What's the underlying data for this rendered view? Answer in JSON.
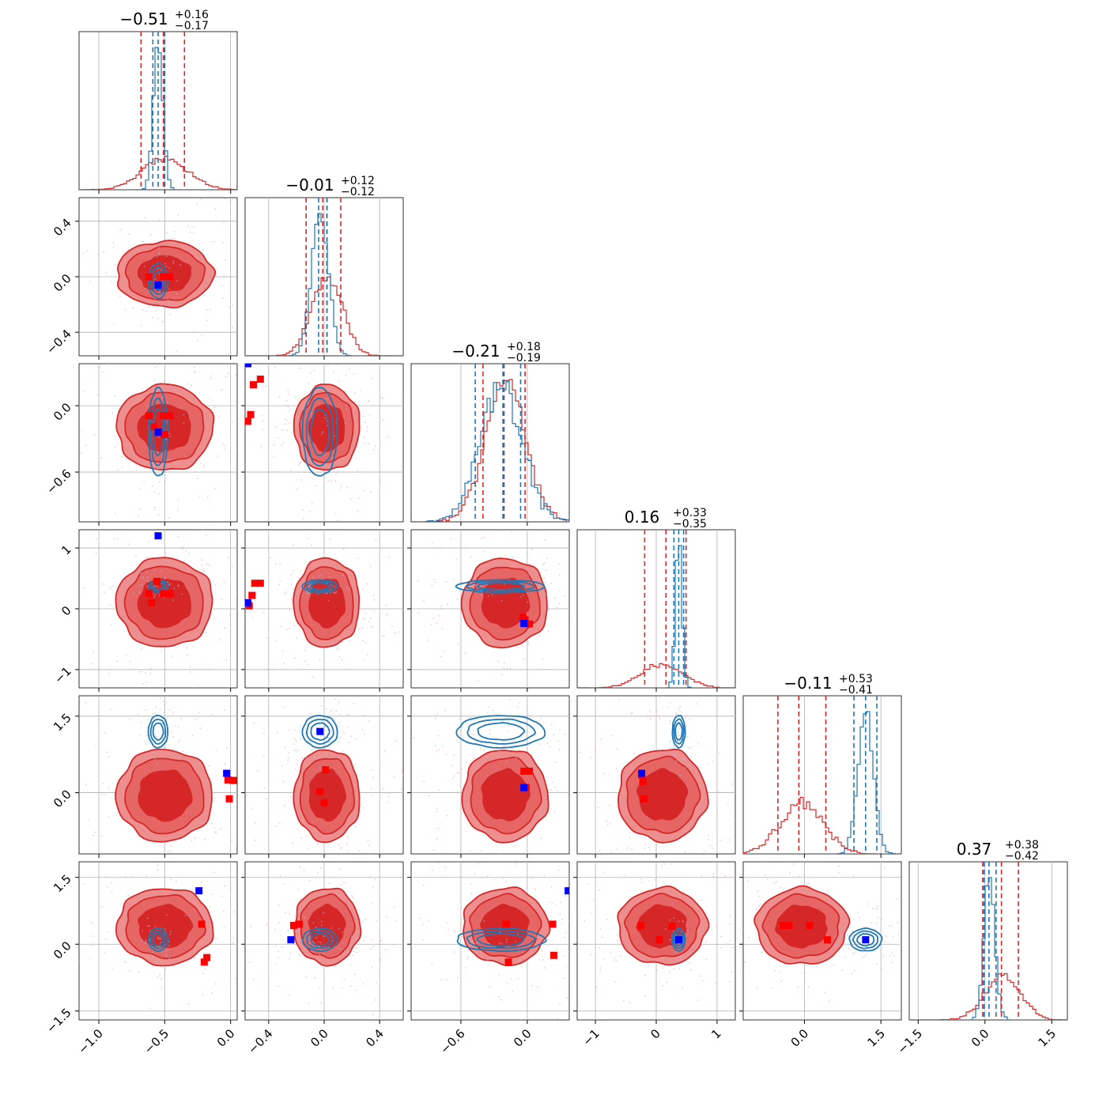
{
  "chart_data": {
    "type": "corner",
    "colors": {
      "series_a": "#d62728",
      "series_b": "#1f77b4",
      "fill_inner": "#d62728",
      "fill_outer": "#ee8f8f",
      "fill_mid": "#e66666",
      "marker_a": "#ff0000",
      "marker_b": "#0000ff",
      "grid": "#b0b0b0"
    },
    "grid": true,
    "parameters": [
      {
        "range": [
          -1.15,
          0.05
        ],
        "ticks": [
          -1.0,
          -0.5,
          0.0
        ],
        "tick_labels": [
          "−1.0",
          "−0.5",
          "0.0"
        ],
        "title": {
          "median": "−0.51",
          "plus": "+0.16",
          "minus": "−0.17"
        },
        "a_quantiles": [
          -0.68,
          -0.51,
          -0.35
        ],
        "b_quantiles": [
          -0.59,
          -0.55,
          -0.5
        ],
        "a_mean": -0.5,
        "a_sd": 0.17,
        "b_mean": -0.55,
        "b_sd": 0.035
      },
      {
        "range": [
          -0.57,
          0.57
        ],
        "ticks": [
          -0.4,
          0.0,
          0.4
        ],
        "tick_labels": [
          "−0.4",
          "0.0",
          "0.4"
        ],
        "title": {
          "median": "−0.01",
          "plus": "+0.12",
          "minus": "−0.12"
        },
        "a_quantiles": [
          -0.13,
          -0.01,
          0.12
        ],
        "b_quantiles": [
          -0.04,
          0.02,
          0.02
        ],
        "a_mean": 0.02,
        "a_sd": 0.11,
        "b_mean": -0.03,
        "b_sd": 0.06
      },
      {
        "range": [
          -1.05,
          0.38
        ],
        "ticks": [
          -0.6,
          0.0
        ],
        "tick_labels": [
          "−0.6",
          "0.0"
        ],
        "title": {
          "median": "−0.21",
          "plus": "+0.18",
          "minus": "−0.19"
        },
        "a_quantiles": [
          -0.4,
          -0.21,
          -0.02
        ],
        "b_quantiles": [
          -0.47,
          -0.22,
          -0.06
        ],
        "a_mean": -0.2,
        "a_sd": 0.18,
        "b_mean": -0.24,
        "b_sd": 0.19
      },
      {
        "range": [
          -1.3,
          1.3
        ],
        "ticks": [
          -1,
          0,
          1
        ],
        "tick_labels": [
          "−1",
          "0",
          "1"
        ],
        "title": {
          "median": "0.16",
          "plus": "+0.33",
          "minus": "−0.35"
        },
        "a_quantiles": [
          -0.19,
          0.16,
          0.49
        ],
        "b_quantiles": [
          0.29,
          0.37,
          0.45
        ],
        "a_mean": 0.1,
        "a_sd": 0.34,
        "b_mean": 0.37,
        "b_sd": 0.05
      },
      {
        "range": [
          -1.2,
          1.9
        ],
        "ticks": [
          0.0,
          1.5
        ],
        "tick_labels": [
          "0.0",
          "1.5"
        ],
        "title": {
          "median": "−0.11",
          "plus": "+0.53",
          "minus": "−0.41"
        },
        "a_quantiles": [
          -0.52,
          -0.11,
          0.42
        ],
        "b_quantiles": [
          0.97,
          1.2,
          1.42
        ],
        "a_mean": -0.05,
        "a_sd": 0.42,
        "b_mean": 1.2,
        "b_sd": 0.15
      },
      {
        "range": [
          -1.7,
          1.85
        ],
        "ticks": [
          -1.5,
          0.0,
          1.5
        ],
        "tick_labels": [
          "−1.5",
          "0.0",
          "1.5"
        ],
        "title": {
          "median": "0.37",
          "plus": "+0.38",
          "minus": "−0.42"
        },
        "a_quantiles": [
          -0.05,
          0.37,
          0.75
        ],
        "b_quantiles": [
          -0.02,
          0.09,
          0.25
        ],
        "a_mean": 0.4,
        "a_sd": 0.4,
        "b_mean": 0.1,
        "b_sd": 0.12
      }
    ],
    "y_axis_ticks": {
      "1": {
        "ticks": [
          -0.4,
          0.0,
          0.4
        ],
        "tick_labels": [
          "−0.4",
          "0.0",
          "0.4"
        ]
      },
      "2": {
        "ticks": [
          -0.6,
          0.0
        ],
        "tick_labels": [
          "−0.6",
          "0.0"
        ]
      },
      "3": {
        "ticks": [
          -1,
          0,
          1
        ],
        "tick_labels": [
          "−1",
          "0",
          "1"
        ]
      },
      "4": {
        "ticks": [
          0.0,
          1.5
        ],
        "tick_labels": [
          "0.0",
          "1.5"
        ]
      },
      "5": {
        "ticks": [
          -1.5,
          0.0,
          1.5
        ],
        "tick_labels": [
          "−1.5",
          "0.0",
          "1.5"
        ]
      }
    },
    "series_a_peaks": [
      [
        [
          -0.62,
          0.0
        ],
        [
          -0.51,
          0.0
        ],
        [
          -0.46,
          0.0
        ]
      ],
      [
        [
          -0.62,
          -0.09
        ],
        [
          -0.51,
          -0.09
        ],
        [
          -0.46,
          -0.09
        ],
        [
          -0.5,
          -0.26
        ],
        [
          -0.58,
          -0.19
        ]
      ],
      [
        [
          -0.62,
          0.04
        ],
        [
          -0.51,
          0.19
        ],
        [
          -0.46,
          0.24
        ],
        [
          -0.55,
          -0.14
        ],
        [
          -0.53,
          -0.08
        ]
      ],
      [
        [
          -0.62,
          0.25
        ],
        [
          -0.51,
          0.25
        ],
        [
          -0.46,
          0.25
        ],
        [
          -0.56,
          0.45
        ],
        [
          -0.6,
          0.1
        ]
      ],
      [
        [
          -0.62,
          0.42
        ],
        [
          -0.5,
          0.42
        ],
        [
          -0.46,
          0.42
        ],
        [
          -0.54,
          0.05
        ],
        [
          -0.52,
          0.22
        ]
      ],
      [
        [
          -0.02,
          -0.18
        ],
        [
          0.02,
          -0.25
        ],
        [
          -0.04,
          -0.14
        ]
      ],
      [
        [
          -0.02,
          0.25
        ],
        [
          0.02,
          0.24
        ],
        [
          -0.01,
          -0.12
        ]
      ],
      [
        [
          0.01,
          0.45
        ],
        [
          -0.03,
          0.02
        ],
        [
          0.0,
          -0.2
        ]
      ],
      [
        [
          -0.03,
          0.42
        ],
        [
          0.02,
          0.42
        ],
        [
          -0.01,
          0.1
        ]
      ],
      [
        [
          -0.22,
          0.22
        ],
        [
          -0.2,
          -0.12
        ],
        [
          -0.24,
          0.35
        ]
      ],
      [
        [
          -0.22,
          0.45
        ],
        [
          -0.18,
          -0.3
        ],
        [
          -0.2,
          -0.4
        ]
      ],
      [
        [
          -0.22,
          0.42
        ],
        [
          -0.18,
          0.45
        ]
      ],
      [
        [
          -0.19,
          0.45
        ],
        [
          0.23,
          0.45
        ],
        [
          0.24,
          -0.25
        ],
        [
          -0.17,
          -0.4
        ]
      ],
      [
        [
          -0.25,
          0.42
        ],
        [
          0.26,
          0.4
        ],
        [
          0.05,
          0.1
        ]
      ],
      [
        [
          -0.42,
          0.42
        ],
        [
          -0.3,
          0.42
        ],
        [
          0.1,
          0.42
        ],
        [
          0.45,
          0.1
        ]
      ]
    ],
    "series_b_peaks": [
      [
        -0.55,
        -0.06
      ],
      [
        -0.55,
        -0.24
      ],
      [
        -0.55,
        0.38
      ],
      [
        -0.55,
        1.2
      ],
      [
        -0.55,
        0.1
      ],
      [
        -0.03,
        -0.24
      ],
      [
        -0.03,
        0.38
      ],
      [
        -0.03,
        1.2
      ],
      [
        -0.03,
        0.1
      ],
      [
        -0.24,
        0.38
      ],
      [
        -0.24,
        1.2
      ],
      [
        -0.24,
        0.1
      ],
      [
        0.37,
        1.2
      ],
      [
        0.37,
        0.1
      ],
      [
        1.2,
        0.1
      ]
    ]
  }
}
